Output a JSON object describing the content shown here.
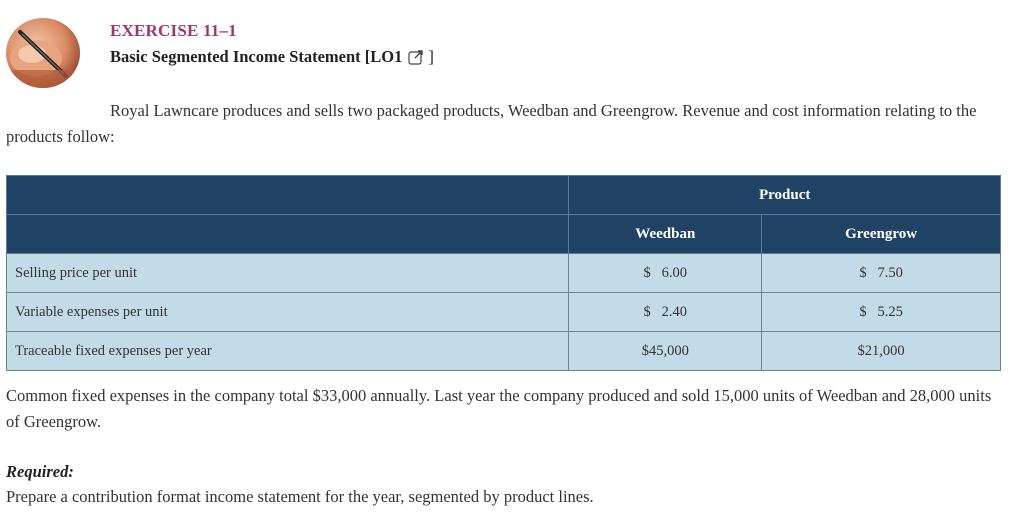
{
  "header": {
    "exercise_title": "EXERCISE 11–1",
    "subtitle": "Basic Segmented Income Statement [LO1",
    "subtitle_close": "]",
    "link_icon": "external-link-icon"
  },
  "intro_text": "Royal Lawncare produces and sells two packaged products, Weedban and Greengrow. Revenue and cost information relating to the products follow:",
  "table": {
    "group_header": "Product",
    "columns": [
      "Weedban",
      "Greengrow"
    ],
    "rows": [
      {
        "label": "Selling price per unit",
        "weedban": "$   6.00",
        "greengrow": "$   7.50"
      },
      {
        "label": "Variable expenses per unit",
        "weedban": "$   2.40",
        "greengrow": "$   5.25"
      },
      {
        "label": "Traceable fixed expenses per year",
        "weedban": "$45,000",
        "greengrow": "$21,000"
      }
    ]
  },
  "common_costs_text": "Common fixed expenses in the company total $33,000 annually. Last year the company produced and sold 15,000 units of Weedban and 28,000 units of Greengrow.",
  "required": {
    "heading": "Required:",
    "text": "Prepare a contribution format income statement for the year, segmented by product lines."
  },
  "colors": {
    "title": "#a0376a",
    "table_header": "#1f4265",
    "table_row": "#c2dbe7"
  }
}
